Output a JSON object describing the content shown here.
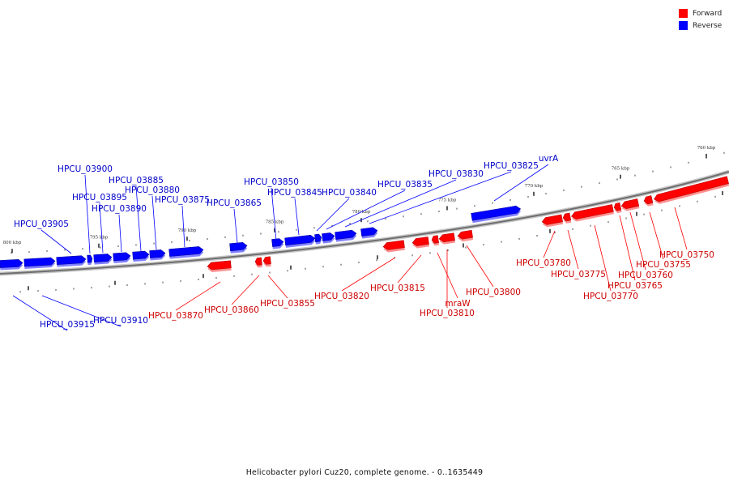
{
  "legend": {
    "forward_label": "Forward",
    "reverse_label": "Reverse",
    "forward_color": "#ff0000",
    "reverse_color": "#0000ff"
  },
  "caption": "Helicobacter pylori Cuz20, complete genome. - 0..1635449",
  "axis_ticks": [
    "760 kbp",
    "765 kbp",
    "770 kbp",
    "775 kbp",
    "780 kbp",
    "785 kbp",
    "790 kbp",
    "795 kbp",
    "800 kbp"
  ],
  "genes": [
    {
      "name": "HPCU_03915",
      "strand": "reverse"
    },
    {
      "name": "HPCU_03910",
      "strand": "reverse"
    },
    {
      "name": "HPCU_03905",
      "strand": "reverse"
    },
    {
      "name": "HPCU_03900",
      "strand": "reverse"
    },
    {
      "name": "HPCU_03895",
      "strand": "reverse"
    },
    {
      "name": "HPCU_03890",
      "strand": "reverse"
    },
    {
      "name": "HPCU_03885",
      "strand": "reverse"
    },
    {
      "name": "HPCU_03880",
      "strand": "reverse"
    },
    {
      "name": "HPCU_03875",
      "strand": "reverse"
    },
    {
      "name": "HPCU_03870",
      "strand": "forward"
    },
    {
      "name": "HPCU_03865",
      "strand": "reverse"
    },
    {
      "name": "HPCU_03860",
      "strand": "forward"
    },
    {
      "name": "HPCU_03855",
      "strand": "forward"
    },
    {
      "name": "HPCU_03850",
      "strand": "reverse"
    },
    {
      "name": "HPCU_03845",
      "strand": "reverse"
    },
    {
      "name": "HPCU_03840",
      "strand": "reverse"
    },
    {
      "name": "HPCU_03835",
      "strand": "reverse"
    },
    {
      "name": "HPCU_03830",
      "strand": "reverse"
    },
    {
      "name": "HPCU_03825",
      "strand": "reverse"
    },
    {
      "name": "HPCU_03820",
      "strand": "forward"
    },
    {
      "name": "HPCU_03815",
      "strand": "forward"
    },
    {
      "name": "mraW",
      "strand": "forward"
    },
    {
      "name": "HPCU_03810",
      "strand": "forward"
    },
    {
      "name": "HPCU_03800",
      "strand": "forward"
    },
    {
      "name": "uvrA",
      "strand": "reverse"
    },
    {
      "name": "HPCU_03780",
      "strand": "forward"
    },
    {
      "name": "HPCU_03775",
      "strand": "forward"
    },
    {
      "name": "HPCU_03770",
      "strand": "forward"
    },
    {
      "name": "HPCU_03765",
      "strand": "forward"
    },
    {
      "name": "HPCU_03760",
      "strand": "forward"
    },
    {
      "name": "HPCU_03755",
      "strand": "forward"
    },
    {
      "name": "HPCU_03750",
      "strand": "forward"
    }
  ]
}
